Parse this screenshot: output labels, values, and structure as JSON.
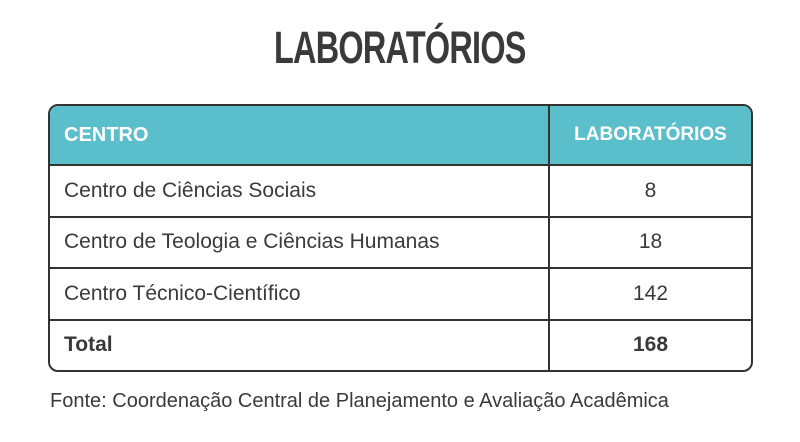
{
  "page": {
    "title": "LABORATÓRIOS",
    "source_note": "Fonte: Coordenação Central de Planejamento e Avaliação Acadêmica"
  },
  "colors": {
    "header_background": "#5ABFCB",
    "header_text": "#FFFFFF",
    "border": "#333333",
    "body_text": "#3A3A3A",
    "page_background": "#FFFFFF"
  },
  "table": {
    "columns": {
      "centro": "CENTRO",
      "laboratorios": "LABORATÓRIOS"
    },
    "rows": [
      {
        "centro": "Centro de Ciências Sociais",
        "laboratorios": "8"
      },
      {
        "centro": "Centro de Teologia e Ciências Humanas",
        "laboratorios": "18"
      },
      {
        "centro": "Centro Técnico-Científico",
        "laboratorios": "142"
      },
      {
        "centro": "Total",
        "laboratorios": "168"
      }
    ]
  }
}
